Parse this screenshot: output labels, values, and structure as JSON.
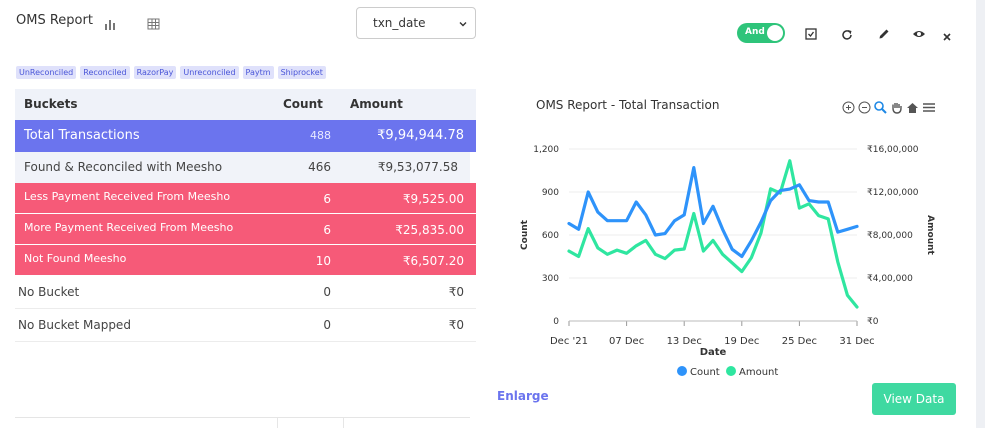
{
  "report": {
    "title": "OMS Report"
  },
  "toolbar": {
    "date_select": "txn_date",
    "toggle_label": "And"
  },
  "filters": [
    "UnReconciled",
    "Reconciled",
    "RazorPay",
    "Unreconciled",
    "Paytm",
    "Shiprocket"
  ],
  "table": {
    "headers": {
      "bucket": "Buckets",
      "count": "Count",
      "amount": "Amount"
    },
    "rows": [
      {
        "bucket": "Total  Transactions",
        "count": "488",
        "amount": "₹9,94,944.78"
      },
      {
        "bucket": "Found & Reconciled with Meesho",
        "count": "466",
        "amount": "₹9,53,077.58"
      },
      {
        "bucket": "Less Payment Received From Meesho",
        "count": "6",
        "amount": "₹9,525.00"
      },
      {
        "bucket": "More Payment Received From Meesho",
        "count": "6",
        "amount": "₹25,835.00"
      },
      {
        "bucket": "Not Found Meesho",
        "count": "10",
        "amount": "₹6,507.20"
      },
      {
        "bucket": "No Bucket",
        "count": "0",
        "amount": "₹0"
      },
      {
        "bucket": "No Bucket Mapped",
        "count": "0",
        "amount": "₹0"
      }
    ]
  },
  "chart": {
    "title": "OMS Report - Total Transaction"
  },
  "actions": {
    "enlarge": "Enlarge",
    "view_data": "View Data"
  },
  "colors": {
    "count_series": "#2e93fa",
    "amount_series": "#2fe6a0",
    "total_row": "#6b74ee",
    "alert_row": "#f65a78",
    "button": "#3fd9a1"
  },
  "chart_data": {
    "type": "line",
    "xlabel": "Date",
    "ylabel": "Count",
    "y2label": "Amount",
    "x_ticks": [
      "Dec '21",
      "07 Dec",
      "13 Dec",
      "19 Dec",
      "25 Dec",
      "31 Dec"
    ],
    "y_ticks": [
      "0",
      "300",
      "600",
      "900",
      "1,200"
    ],
    "y2_ticks": [
      "₹0",
      "₹4,00,000",
      "₹8,00,000",
      "₹12,00,000",
      "₹16,00,000"
    ],
    "ylim": [
      0,
      1200
    ],
    "y2lim": [
      0,
      1600000
    ],
    "x": [
      1,
      2,
      3,
      4,
      5,
      6,
      7,
      8,
      9,
      10,
      11,
      12,
      13,
      14,
      15,
      16,
      17,
      18,
      19,
      20,
      21,
      22,
      23,
      24,
      25,
      26,
      27,
      28,
      29,
      30,
      31
    ],
    "legend": "bottom",
    "series": [
      {
        "name": "Count",
        "axis": "left",
        "values": [
          680,
          640,
          900,
          760,
          700,
          700,
          700,
          830,
          740,
          600,
          610,
          700,
          740,
          1070,
          680,
          800,
          640,
          500,
          450,
          560,
          690,
          840,
          910,
          920,
          950,
          840,
          830,
          830,
          620,
          640,
          660
        ]
      },
      {
        "name": "Amount",
        "axis": "right",
        "values": [
          650000,
          600000,
          860000,
          680000,
          620000,
          660000,
          630000,
          700000,
          750000,
          620000,
          580000,
          660000,
          670000,
          1000000,
          650000,
          750000,
          620000,
          540000,
          460000,
          590000,
          820000,
          1230000,
          1190000,
          1490000,
          1050000,
          1090000,
          980000,
          950000,
          550000,
          240000,
          130000
        ]
      }
    ]
  }
}
